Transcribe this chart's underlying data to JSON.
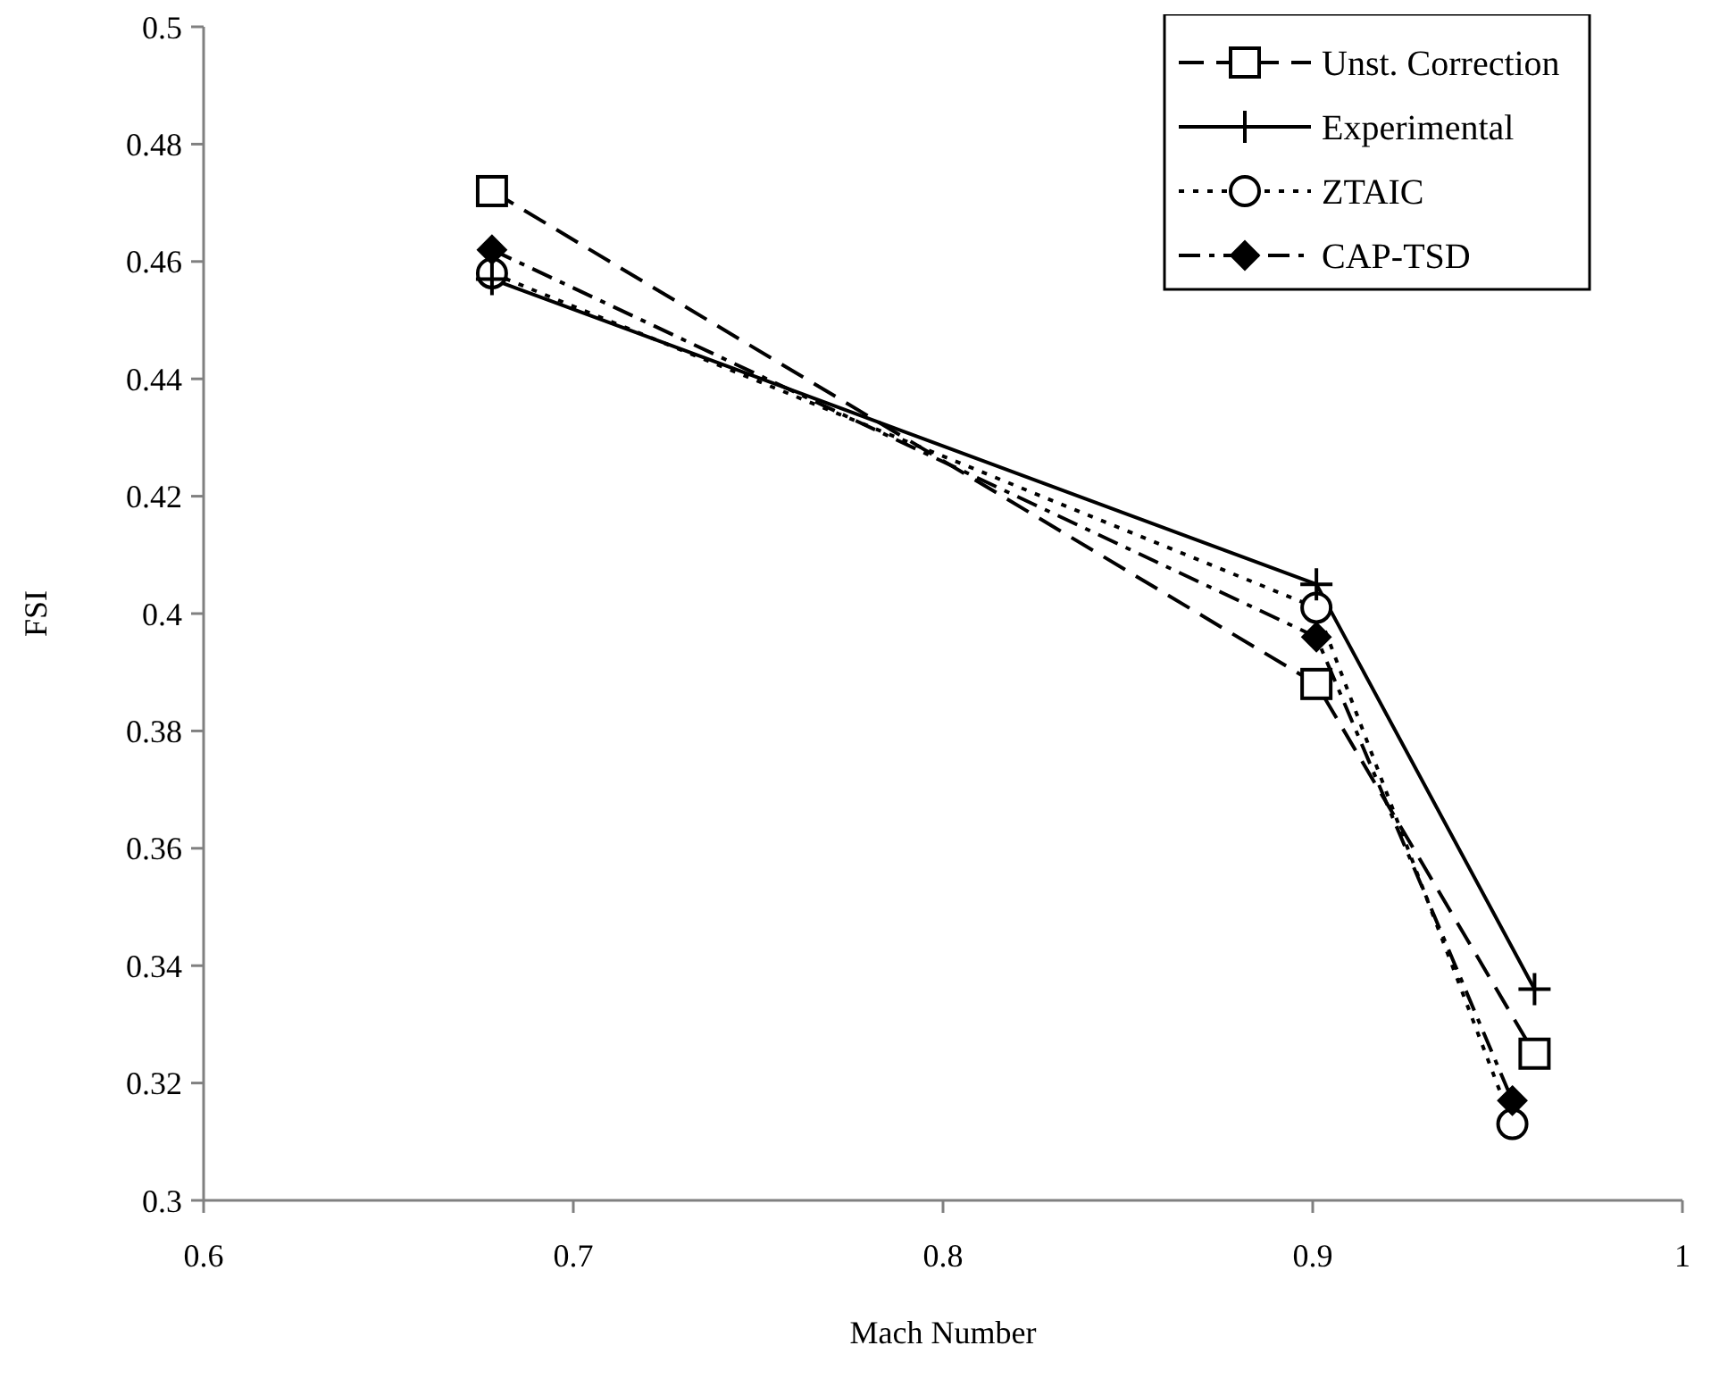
{
  "chart_data": {
    "type": "line",
    "xlabel": "Mach Number",
    "ylabel": "FSI",
    "xlim": [
      0.6,
      1
    ],
    "xticks": [
      0.6,
      0.7,
      0.8,
      0.9,
      1
    ],
    "ylim": [
      0.3,
      0.5
    ],
    "yticks": [
      0.3,
      0.32,
      0.34,
      0.36,
      0.38,
      0.4,
      0.42,
      0.44,
      0.46,
      0.48,
      0.5
    ],
    "grid": false,
    "legend": "top right",
    "series": [
      {
        "name": "Unst. Correction",
        "color": "#000000",
        "x": [
          0.678,
          0.901,
          0.96
        ],
        "values": [
          0.472,
          0.388,
          0.325
        ],
        "marker": "square",
        "line_style": "dashed"
      },
      {
        "name": "Experimental",
        "color": "#000000",
        "x": [
          0.678,
          0.901,
          0.96
        ],
        "values": [
          0.457,
          0.405,
          0.336
        ],
        "marker": "cross",
        "line_style": "solid"
      },
      {
        "name": "ZTAIC",
        "color": "#000000",
        "x": [
          0.678,
          0.901,
          0.954
        ],
        "values": [
          0.458,
          0.401,
          0.313
        ],
        "marker": "circle",
        "line_style": "dotted"
      },
      {
        "name": "CAP-TSD",
        "color": "#000000",
        "x": [
          0.678,
          0.901,
          0.954
        ],
        "values": [
          0.462,
          0.396,
          0.317
        ],
        "marker": "diamond",
        "line_style": "dashdot"
      }
    ]
  }
}
